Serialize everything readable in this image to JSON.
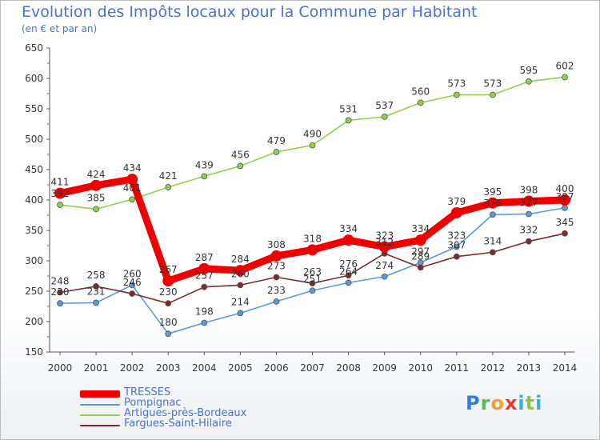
{
  "title": "Evolution des Impôts locaux pour la Commune par Habitant",
  "subtitle": "(en € et par an)",
  "logo_text": "Proxiti",
  "chart_data": {
    "type": "line",
    "title": "Evolution des Impôts locaux pour la Commune par Habitant",
    "subtitle": "(en € et par an)",
    "xlabel": "",
    "ylabel": "",
    "ylim": [
      150,
      650
    ],
    "yticks": [
      150,
      200,
      250,
      300,
      350,
      400,
      450,
      500,
      550,
      600,
      650
    ],
    "grid": false,
    "legend_position": "bottom-left",
    "categories": [
      "2000",
      "2001",
      "2002",
      "2003",
      "2004",
      "2005",
      "2006",
      "2007",
      "2008",
      "2009",
      "2010",
      "2011",
      "2012",
      "2013",
      "2014"
    ],
    "series": [
      {
        "name": "TRESSES",
        "color": "#ee0000",
        "emphasis": true,
        "values": [
          411,
          424,
          434,
          267,
          287,
          284,
          308,
          318,
          334,
          323,
          334,
          379,
          395,
          398,
          400
        ],
        "labels": [
          "411",
          "424",
          "434",
          "267",
          "287",
          "284",
          "308",
          "318",
          "334",
          "323",
          "334",
          "379",
          "395",
          "398",
          "400"
        ]
      },
      {
        "name": "Pompignac",
        "color": "#5b9bd5",
        "values": [
          230,
          231,
          260,
          180,
          198,
          214,
          233,
          251,
          264,
          274,
          297,
          323,
          376,
          377,
          387
        ],
        "labels": [
          "230",
          "231",
          "260",
          "180",
          "198",
          "214",
          "233",
          "251",
          "264",
          "274",
          "297",
          "323",
          "376",
          "377",
          "387"
        ]
      },
      {
        "name": "Artigues-près-Bordeaux",
        "color": "#8fd14f",
        "values": [
          392,
          385,
          401,
          421,
          439,
          456,
          479,
          490,
          531,
          537,
          560,
          573,
          573,
          595,
          602
        ],
        "labels": [
          "392",
          "385",
          "401",
          "421",
          "439",
          "456",
          "479",
          "490",
          "531",
          "537",
          "560",
          "573",
          "573",
          "595",
          "602"
        ]
      },
      {
        "name": "Fargues-Saint-Hilaire",
        "color": "#7b2b2b",
        "values": [
          248,
          258,
          246,
          230,
          257,
          260,
          273,
          263,
          276,
          312,
          289,
          307,
          314,
          332,
          345
        ],
        "labels": [
          "248",
          "258",
          "246",
          "230",
          "257",
          "260",
          "273",
          "263",
          "276",
          "312",
          "289",
          "307",
          "314",
          "332",
          "345"
        ]
      }
    ]
  }
}
